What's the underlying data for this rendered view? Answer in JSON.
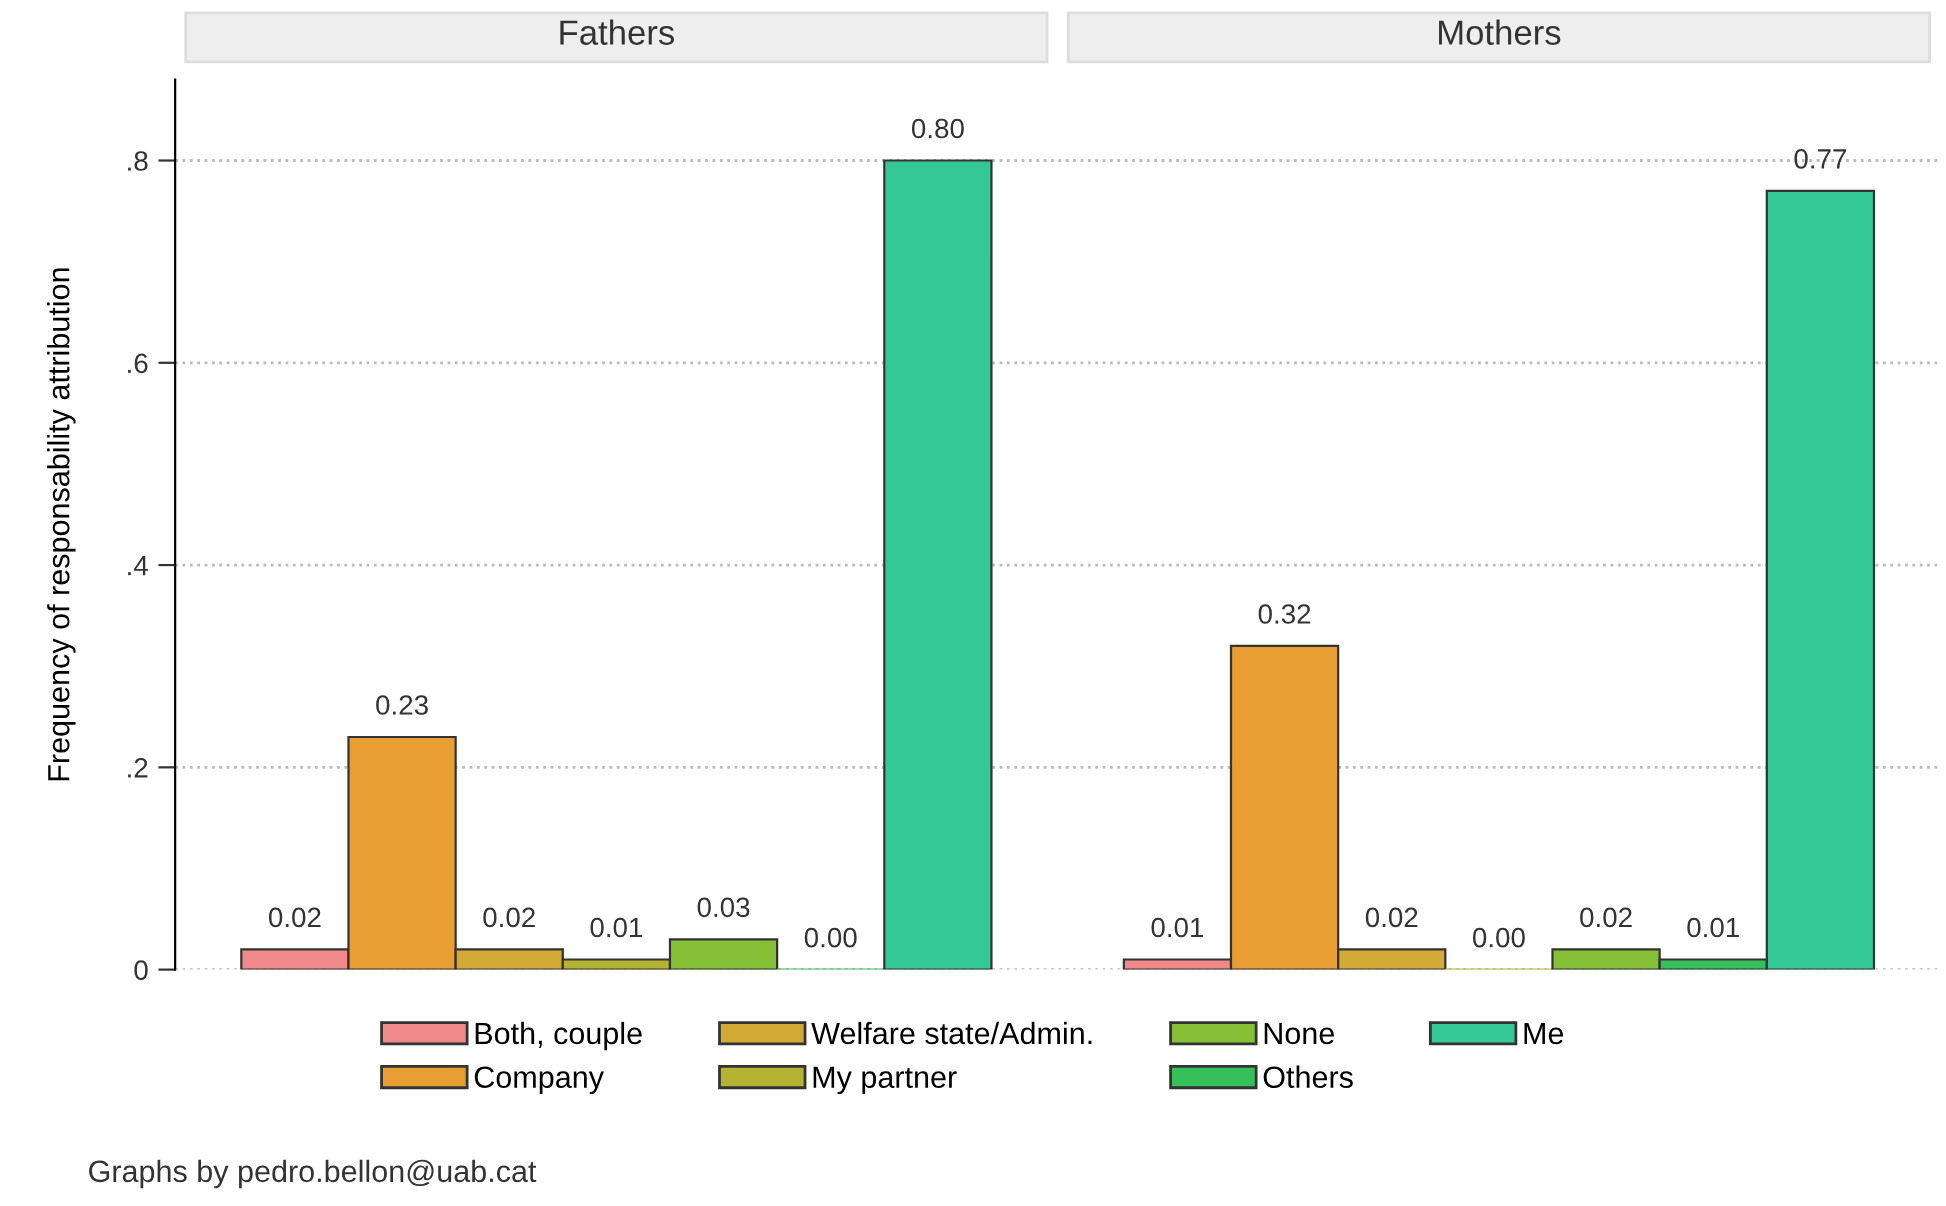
{
  "chart_data": {
    "type": "bar",
    "ylabel": "Frequency of responsability attribution",
    "categories": [
      "Fathers",
      "Mothers"
    ],
    "series": [
      {
        "name": "Both, couple",
        "color": "#f08a8a",
        "values": [
          0.02,
          0.01
        ],
        "value_labels": [
          "0.02",
          "0.01"
        ]
      },
      {
        "name": "Company",
        "color": "#e89e32",
        "values": [
          0.23,
          0.32
        ],
        "value_labels": [
          "0.23",
          "0.32"
        ]
      },
      {
        "name": "Welfare state/Admin.",
        "color": "#d4aa36",
        "values": [
          0.02,
          0.02
        ],
        "value_labels": [
          "0.02",
          "0.02"
        ]
      },
      {
        "name": "My partner",
        "color": "#b4b432",
        "values": [
          0.01,
          0.0
        ],
        "value_labels": [
          "0.01",
          "0.00"
        ]
      },
      {
        "name": "None",
        "color": "#86c036",
        "values": [
          0.03,
          0.02
        ],
        "value_labels": [
          "0.03",
          "0.02"
        ]
      },
      {
        "name": "Others",
        "color": "#36c05a",
        "values": [
          0.0,
          0.01
        ],
        "value_labels": [
          "0.00",
          "0.01"
        ]
      },
      {
        "name": "Me",
        "color": "#34c896",
        "values": [
          0.8,
          0.77
        ],
        "value_labels": [
          "0.80",
          "0.77"
        ]
      }
    ],
    "ylim": [
      0,
      0.88
    ],
    "yticks": [
      0,
      {
        "value": 0.2,
        "label": ".2"
      },
      {
        "value": 0.4,
        "label": ".4"
      },
      {
        "value": 0.6,
        "label": ".6"
      },
      {
        "value": 0.8,
        "label": ".8"
      }
    ],
    "grid": "y",
    "legend": "bottom",
    "annotations": [
      "Graphs by pedro.bellon@uab.cat"
    ]
  }
}
